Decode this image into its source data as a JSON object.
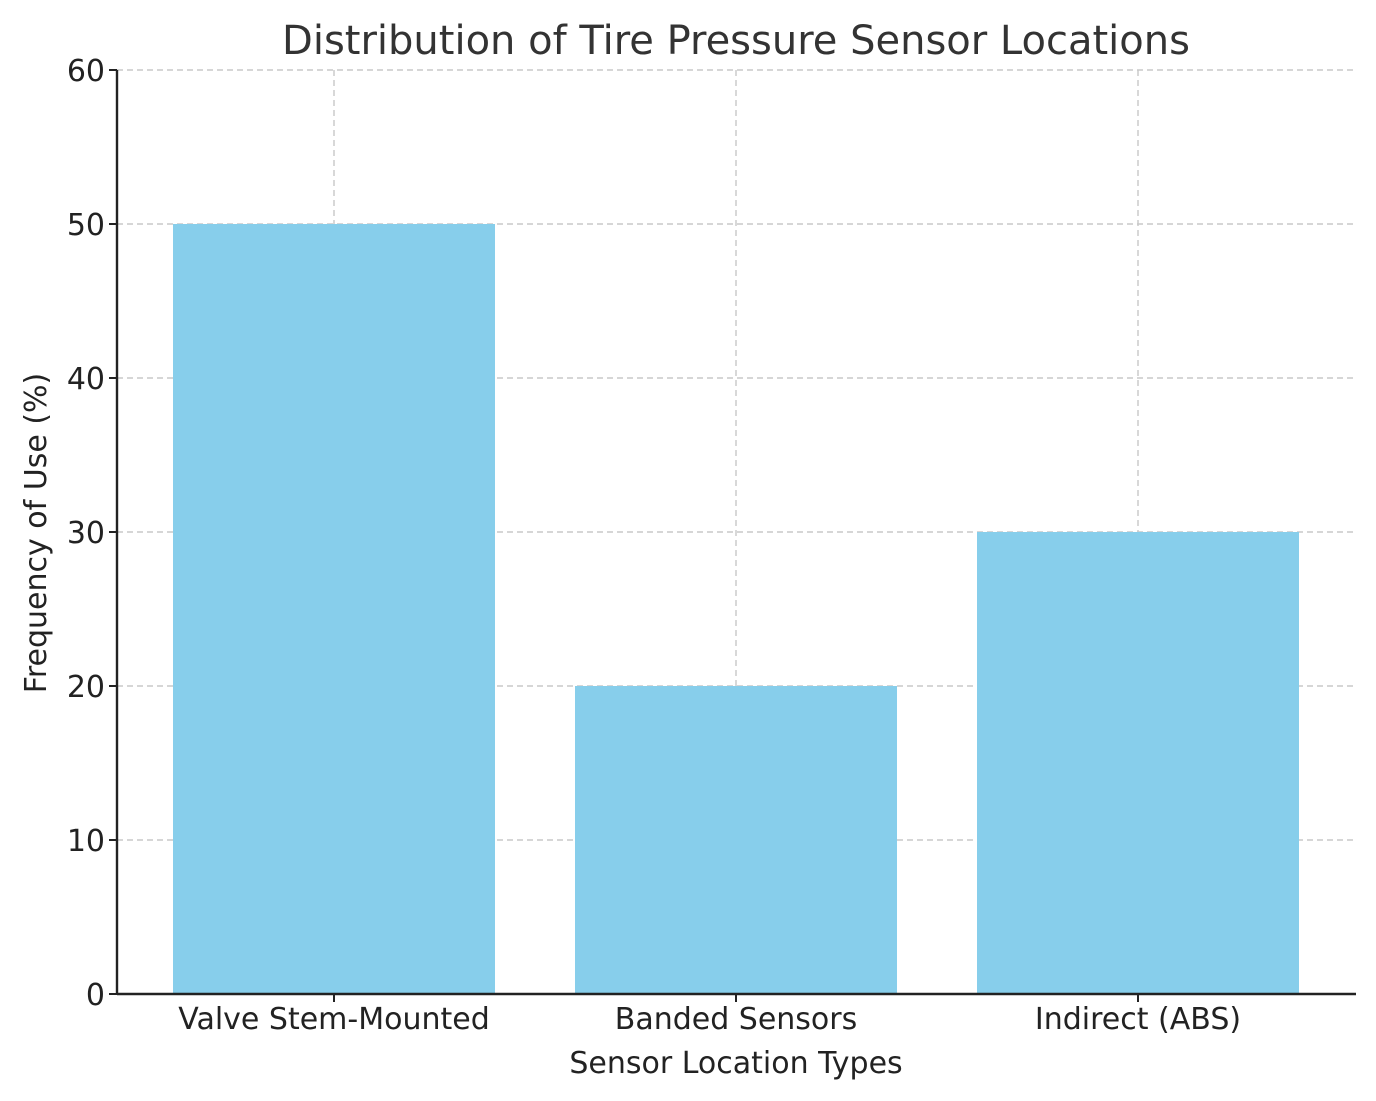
{
  "chart_data": {
    "type": "bar",
    "title": "Distribution of Tire Pressure Sensor Locations",
    "xlabel": "Sensor Location Types",
    "ylabel": "Frequency of Use (%)",
    "categories": [
      "Valve Stem-Mounted",
      "Banded Sensors",
      "Indirect (ABS)"
    ],
    "values": [
      50,
      20,
      30
    ],
    "ylim": [
      0,
      60
    ],
    "yticks": [
      0,
      10,
      20,
      30,
      40,
      50,
      60
    ],
    "grid": true,
    "legend": "none",
    "colors": {
      "bar": "#87CEEB"
    }
  }
}
